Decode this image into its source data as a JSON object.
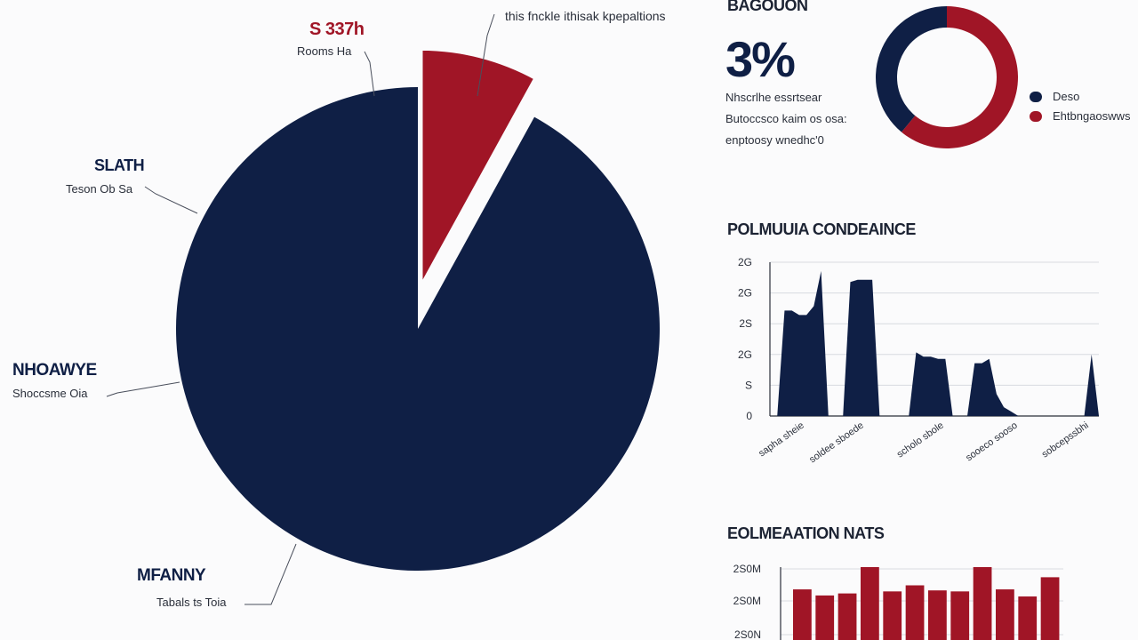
{
  "colors": {
    "navy": "#0f1f45",
    "crimson": "#a01526",
    "axis": "#2a2f3a",
    "grid": "#d8dbe0",
    "text": "#1c2333"
  },
  "pie": {
    "labels": [
      {
        "title": "S 337h",
        "sub": "Rooms Ha"
      },
      {
        "title": "",
        "sub": "this fnckle ithisak kpepaltions"
      },
      {
        "title": "SLATH",
        "sub": "Teson Ob Sa"
      },
      {
        "title": "NHOAWYE",
        "sub": "Shoccsme Oia"
      },
      {
        "title": "MFANNY",
        "sub": "Tabals ts Toia"
      }
    ]
  },
  "summary": {
    "heading": "BAGOUON",
    "big_value": "3%",
    "lines": [
      "Nhscrlhe essrtsear",
      "Butoccsco kaim os osa:",
      "enptoosy wnedhc'0"
    ],
    "legend": [
      {
        "label": "Deso",
        "color": "#0f1f45"
      },
      {
        "label": "Ehtbngaoswws",
        "color": "#a01526"
      }
    ]
  },
  "area_chart": {
    "title": "POLMUUIA CONDEAINCE",
    "ytick_labels": [
      "2G",
      "2G",
      "2S",
      "2G",
      "S",
      "0"
    ],
    "xtick_labels": [
      "sapha sheie",
      "soldee sboede",
      "scholo sbole",
      "sooeco sooso",
      "sobcepssbhi"
    ]
  },
  "bar_chart_bottom": {
    "title": "EOLMEAATION NATS",
    "ytick_labels": [
      "2S0M",
      "2S0M",
      "2S0N"
    ]
  },
  "chart_data": [
    {
      "type": "pie",
      "title": "",
      "slices": [
        {
          "name": "Navy",
          "value": 92,
          "color": "#0f1f45"
        },
        {
          "name": "Crimson",
          "value": 8,
          "color": "#a01526"
        }
      ]
    },
    {
      "type": "pie",
      "title": "BAGOUON",
      "slices": [
        {
          "name": "Deso",
          "value": 39,
          "color": "#0f1f45"
        },
        {
          "name": "Ehtbngaoswws",
          "value": 61,
          "color": "#a01526"
        }
      ]
    },
    {
      "type": "area",
      "title": "POLMUUIA CONDEAINCE",
      "series": [
        {
          "color": "#0f1f45",
          "values": [
            0,
            0,
            2.4,
            2.4,
            2.3,
            2.3,
            2.5,
            3.3,
            0,
            0,
            0,
            3.05,
            3.1,
            3.1,
            3.1,
            0,
            0,
            0,
            0,
            0,
            1.45,
            1.35,
            1.35,
            1.3,
            1.3,
            0,
            0,
            0,
            1.2,
            1.2,
            1.3,
            0.5,
            0.2,
            0.1,
            0,
            0,
            0,
            0,
            0,
            0,
            0,
            0,
            0,
            0,
            1.4,
            0
          ]
        }
      ]
    },
    {
      "type": "bar",
      "title": "EOLMEAATION NATS",
      "values": [
        2.5,
        2.2,
        2.3,
        3.6,
        2.4,
        2.7,
        2.45,
        2.4,
        3.6,
        2.5,
        2.15,
        3.1
      ],
      "colors": [
        "#a01526",
        "#a01526",
        "#a01526",
        "#a01526",
        "#a01526",
        "#a01526",
        "#a01526",
        "#a01526",
        "#a01526",
        "#a01526",
        "#a01526",
        "#a01526"
      ]
    }
  ]
}
